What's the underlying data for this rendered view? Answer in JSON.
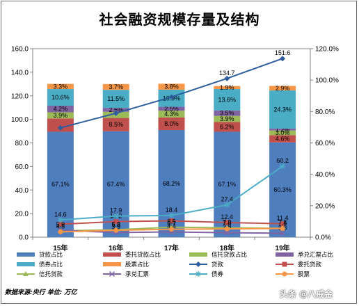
{
  "title": "社会融资规模存量及结构",
  "source_text": "数据来源:央行 单位: 万亿",
  "watermark": "头条 @八戒金",
  "chart_data": {
    "type": "bar",
    "categories": [
      "15年",
      "16年",
      "17年",
      "18年",
      "19年"
    ],
    "left_axis": {
      "min": 0,
      "max": 160,
      "ticks": [
        "0.0",
        "20.0",
        "40.0",
        "60.0",
        "80.0",
        "100.0",
        "120.0",
        "140.0",
        "160.0"
      ]
    },
    "right_axis": {
      "min": 0,
      "max": 120,
      "ticks": [
        "0.0%",
        "20.0%",
        "40.0%",
        "60.0%",
        "80.0%",
        "100.0%",
        "120.0%"
      ]
    },
    "stacked_percent_series": [
      {
        "name": "贷款占比",
        "color": "#4f7ebf",
        "values": [
          67.1,
          67.4,
          68.2,
          67.1,
          60.3
        ],
        "labels": [
          "67.1%",
          "67.4%",
          "68.2%",
          "67.1%",
          "60.3%"
        ]
      },
      {
        "name": "委托贷款占比",
        "color": "#c0504d",
        "values": [
          8.5,
          8.5,
          8.0,
          6.2,
          4.6
        ],
        "labels": [
          "",
          "8.5%",
          "8.0%",
          "6.2%",
          "4.6%"
        ]
      },
      {
        "name": "信托贷款占比",
        "color": "#9bbb59",
        "values": [
          3.9,
          3.9,
          4.3,
          3.9,
          3.0
        ],
        "labels": [
          "3.9%",
          "",
          "4.3%",
          "3.9%",
          "3.0%"
        ]
      },
      {
        "name": "承兑汇票占比",
        "color": "#8064a2",
        "values": [
          4.2,
          2.5,
          2.5,
          3.5,
          1.2
        ],
        "labels": [
          "4.2%",
          "2.5%",
          "2.5%",
          "3.5%",
          "1.2%"
        ]
      },
      {
        "name": "债券占比",
        "color": "#4bacc6",
        "values": [
          10.6,
          11.5,
          10.9,
          13.6,
          24.3
        ],
        "labels": [
          "10.6%",
          "11.5%",
          "10.9%",
          "13.6%",
          "24.3%"
        ]
      },
      {
        "name": "股票占比",
        "color": "#f79646",
        "values": [
          3.3,
          3.7,
          3.8,
          1.9,
          2.9
        ],
        "labels": [
          "3.3%",
          "3.7%",
          "3.8%",
          "1.9%",
          "2.9%"
        ]
      }
    ],
    "line_series": [
      {
        "name": "贷款",
        "color": "#2e5d9f",
        "marker": "diamond",
        "values": [
          92.8,
          105.2,
          119.0,
          134.7,
          151.6
        ],
        "labels": [
          "",
          "",
          "",
          "134.7",
          "151.6"
        ]
      },
      {
        "name": "委托贷款",
        "color": "#c0504d",
        "marker": "square",
        "values": [
          11.0,
          13.2,
          13.9,
          12.4,
          11.4
        ],
        "labels": [
          "",
          "13.2",
          "",
          "12.4",
          "11.4"
        ]
      },
      {
        "name": "信托贷款",
        "color": "#9bbb59",
        "marker": "triangle",
        "values": [
          5.4,
          6.3,
          8.5,
          7.9,
          7.5
        ],
        "labels": [
          "",
          "6.3",
          "8.5",
          "7.9",
          "7.5"
        ]
      },
      {
        "name": "承兑汇票",
        "color": "#8064a2",
        "marker": "x",
        "values": [
          5.9,
          3.9,
          4.4,
          3.8,
          3.3
        ],
        "labels": [
          "5.9",
          "3.9",
          "4.4",
          "3.8",
          "3.3"
        ]
      },
      {
        "name": "债券",
        "color": "#4bacc6",
        "marker": "star",
        "values": [
          14.6,
          17.9,
          18.4,
          27.4,
          60.2
        ],
        "labels": [
          "14.6",
          "17.9",
          "18.4",
          "27.4",
          "60.2"
        ]
      },
      {
        "name": "股票",
        "color": "#f79646",
        "marker": "circle",
        "values": [
          4.5,
          5.8,
          6.7,
          7.0,
          7.4
        ],
        "labels": [
          "4.5",
          "5.8",
          "6.7",
          "7.0",
          "7.4"
        ]
      }
    ],
    "legend": [
      {
        "name": "贷款占比",
        "kind": "rect",
        "color": "#4f7ebf"
      },
      {
        "name": "委托贷款占比",
        "kind": "rect",
        "color": "#c0504d"
      },
      {
        "name": "信托贷款占比",
        "kind": "rect",
        "color": "#9bbb59"
      },
      {
        "name": "承兑汇票占比",
        "kind": "rect",
        "color": "#8064a2"
      },
      {
        "name": "债券占比",
        "kind": "rect",
        "color": "#4bacc6"
      },
      {
        "name": "股票占比",
        "kind": "rect",
        "color": "#f79646"
      },
      {
        "name": "贷款",
        "kind": "line",
        "marker": "diamond",
        "color": "#2e5d9f"
      },
      {
        "name": "委托贷款",
        "kind": "line",
        "marker": "square",
        "color": "#c0504d"
      },
      {
        "name": "信托贷款",
        "kind": "line",
        "marker": "triangle",
        "color": "#9bbb59"
      },
      {
        "name": "承兑汇票",
        "kind": "line",
        "marker": "x",
        "color": "#8064a2"
      },
      {
        "name": "债券",
        "kind": "line",
        "marker": "star",
        "color": "#4bacc6"
      },
      {
        "name": "股票",
        "kind": "line",
        "marker": "circle",
        "color": "#f79646"
      }
    ],
    "legend_position": "bottom",
    "grid": false
  }
}
